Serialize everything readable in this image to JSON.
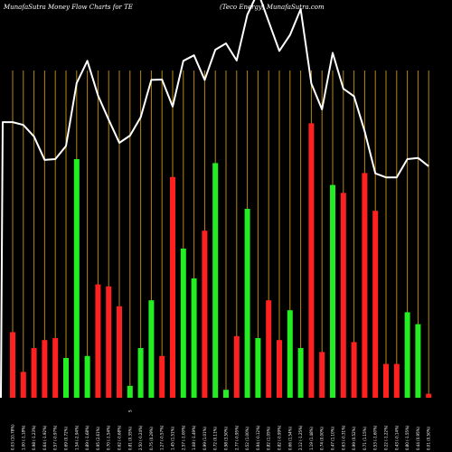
{
  "header": {
    "left_title": "MunafaSutra  Money Flow  Charts for TE",
    "right_title": "(Teco Energy) MunafaSutra.com"
  },
  "colors": {
    "background": "#000000",
    "grid": "#b8860b",
    "up": "#22ee22",
    "down": "#ff2020",
    "line": "#ffffff"
  },
  "chart_data": {
    "type": "bar",
    "title": "MunafaSutra  Money Flow  Charts for TE",
    "subtitle": "(Teco Energy) MunafaSutra.com",
    "ylim": [
      0,
      100
    ],
    "grid": "vertical",
    "bars": [
      {
        "dir": "down",
        "value": 16.5
      },
      {
        "dir": "down",
        "value": 6.5
      },
      {
        "dir": "down",
        "value": 12.5
      },
      {
        "dir": "down",
        "value": 14.5
      },
      {
        "dir": "down",
        "value": 15.0
      },
      {
        "dir": "up",
        "value": 10.0
      },
      {
        "dir": "up",
        "value": 60.0
      },
      {
        "dir": "up",
        "value": 10.5
      },
      {
        "dir": "down",
        "value": 28.5
      },
      {
        "dir": "down",
        "value": 28.0
      },
      {
        "dir": "down",
        "value": 23.0
      },
      {
        "dir": "up",
        "value": 3.0
      },
      {
        "dir": "up",
        "value": 12.5
      },
      {
        "dir": "up",
        "value": 24.5
      },
      {
        "dir": "down",
        "value": 10.5
      },
      {
        "dir": "down",
        "value": 55.5
      },
      {
        "dir": "up",
        "value": 37.5
      },
      {
        "dir": "up",
        "value": 30.0
      },
      {
        "dir": "down",
        "value": 42.0
      },
      {
        "dir": "up",
        "value": 59.0
      },
      {
        "dir": "up",
        "value": 2.0
      },
      {
        "dir": "down",
        "value": 15.5
      },
      {
        "dir": "up",
        "value": 47.5
      },
      {
        "dir": "up",
        "value": 15.0
      },
      {
        "dir": "down",
        "value": 24.5
      },
      {
        "dir": "down",
        "value": 14.5
      },
      {
        "dir": "up",
        "value": 22.0
      },
      {
        "dir": "up",
        "value": 12.5
      },
      {
        "dir": "down",
        "value": 69.0
      },
      {
        "dir": "down",
        "value": 11.5
      },
      {
        "dir": "up",
        "value": 53.5
      },
      {
        "dir": "down",
        "value": 51.5
      },
      {
        "dir": "down",
        "value": 14.0
      },
      {
        "dir": "down",
        "value": 56.5
      },
      {
        "dir": "down",
        "value": 47.0
      },
      {
        "dir": "down",
        "value": 8.5
      },
      {
        "dir": "down",
        "value": 8.5
      },
      {
        "dir": "up",
        "value": 21.5
      },
      {
        "dir": "up",
        "value": 18.5
      },
      {
        "dir": "down",
        "value": 1.0
      }
    ],
    "line": [
      69.3,
      68.6,
      65.7,
      59.8,
      60.0,
      63.3,
      79.1,
      84.7,
      76.0,
      69.9,
      64.1,
      65.9,
      70.5,
      79.9,
      80.0,
      73.2,
      84.7,
      86.1,
      79.9,
      87.5,
      89.1,
      84.8,
      96.3,
      102.0,
      94.6,
      87.2,
      91.2,
      97.7,
      79.0,
      72.5,
      86.7,
      77.7,
      75.8,
      67.0,
      56.4,
      55.4,
      55.4,
      60.0,
      60.3,
      58.2
    ],
    "x_tick_labels": [
      "0.03 (10.78%)",
      "1.00 (-1.18%)",
      "0.98 (-1.23%)",
      "0.64 (-1.92%)",
      "0.57 (-0.97%)",
      "0.69 (0.72%)",
      "1.54 (-2.94%)",
      "0.89 (-1.68%)",
      "0.95 (2.61%)",
      "0.70 (-1.54%)",
      "0.62 (-0.68%)",
      "0.81 (0.35%)",
      "2.50 (-0.24%)",
      "0.75 (0.29%)",
      "1.27 (-0.57%)",
      "1.45 (1.51%)",
      "2.57 (-1.00%)",
      "1.08 (-1.49%)",
      "0.99 (1.01%)",
      "0.72 (0.11%)",
      "0.98 (3.50%)",
      "2.77 (-0.95%)",
      "0.52 (1.00%)",
      "0.94 (-0.12%)",
      "0.82 (1.05%)",
      "0.82 (-0.99%)",
      "0.66 (1.54%)",
      "2.12 (-1.25%)",
      "1.19 (1.48%)",
      "0.74 (0.00%)",
      "0.47 (1.10%)",
      "0.63 (-0.31%)",
      "0.99 (0.52%)",
      "0.71 (1.15%)",
      "0.53 (-1.60%)",
      "0.22 (-1.22%)",
      "0.43 (-0.14%)",
      "0.80 (-1.55%)",
      "0.44 (0.95%)",
      "0.01 (0.50%)"
    ],
    "x_tick_labels_2": [
      "",
      "",
      "",
      "",
      "",
      "",
      "",
      "",
      "",
      "",
      "",
      "S",
      "",
      "",
      "",
      "",
      "",
      "",
      "",
      "",
      "",
      "",
      "",
      "",
      "",
      "",
      "",
      "",
      "",
      "",
      "",
      "",
      "",
      "",
      "",
      "",
      "",
      "",
      "",
      ""
    ]
  }
}
